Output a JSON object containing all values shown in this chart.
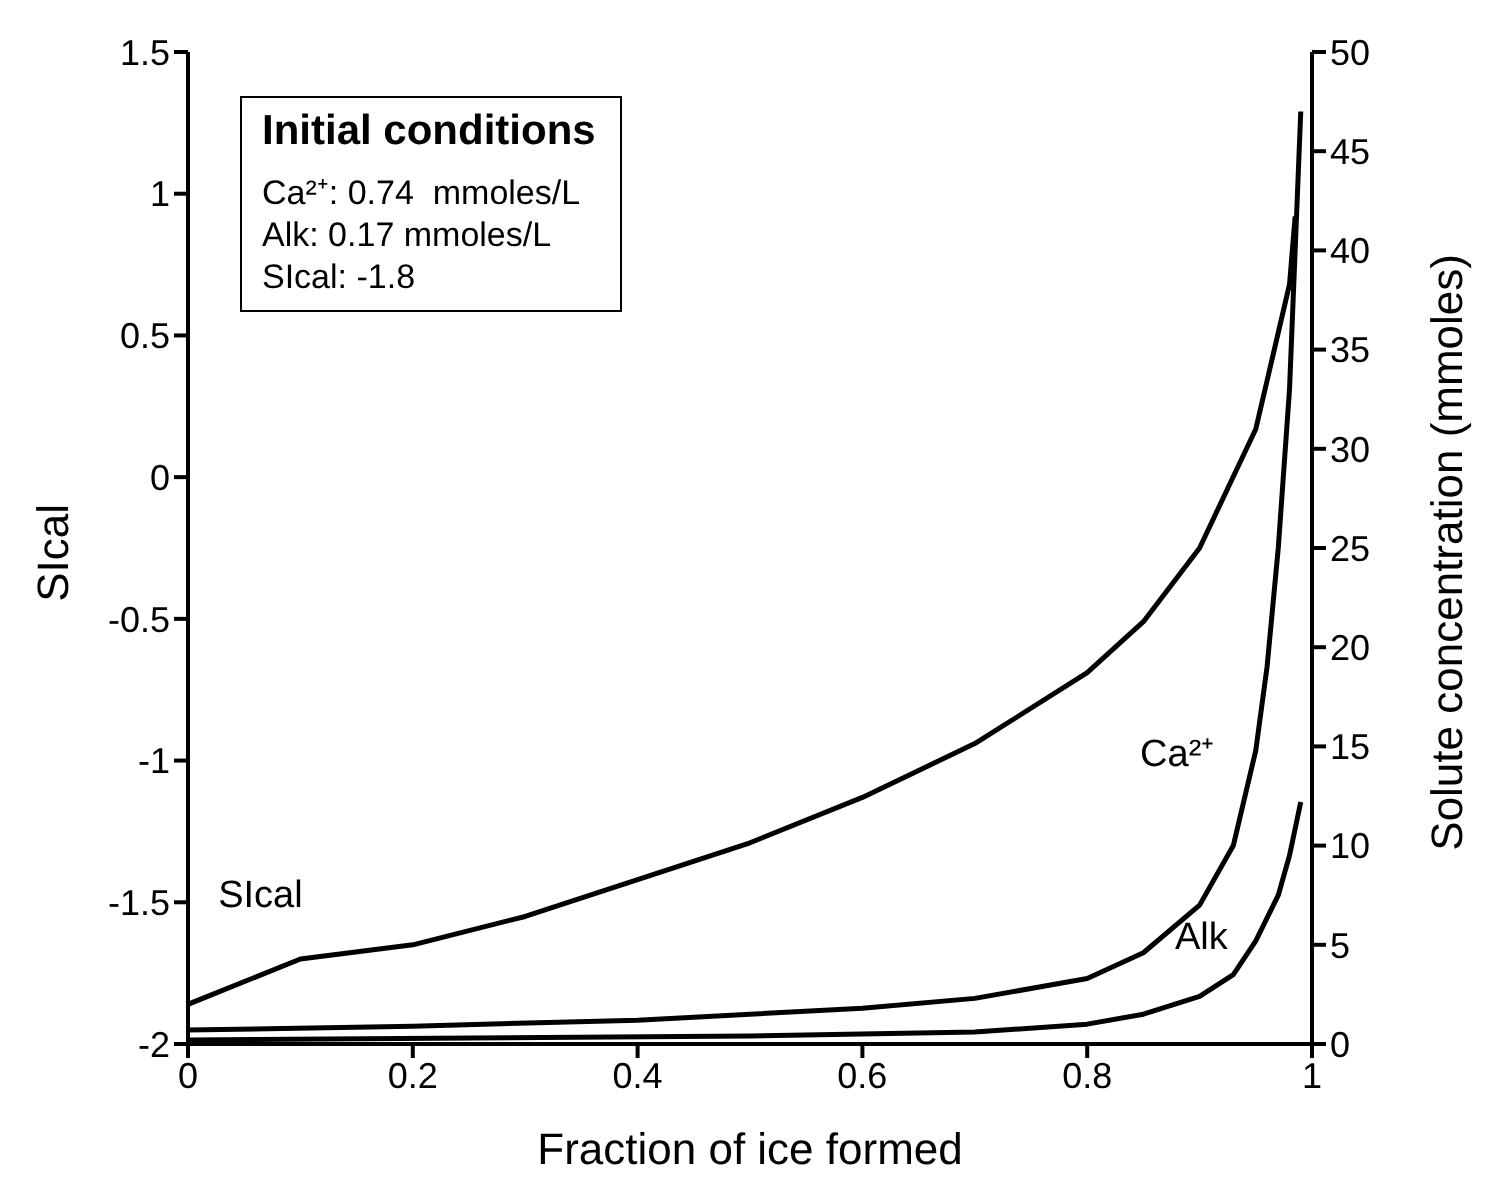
{
  "chart_data": {
    "type": "line",
    "xlabel": "Fraction of ice formed",
    "ylabel": "SIcal",
    "y2label": "Solute concentration (mmoles)",
    "xlim": [
      0,
      1
    ],
    "xticks": [
      0,
      0.2,
      0.4,
      0.6,
      0.8,
      1
    ],
    "ylim": [
      -2,
      1.5
    ],
    "yticks": [
      -2,
      -1.5,
      -1,
      -0.5,
      0,
      0.5,
      1,
      1.5
    ],
    "y2lim": [
      0,
      50
    ],
    "y2ticks": [
      0,
      5,
      10,
      15,
      20,
      25,
      30,
      35,
      40,
      45,
      50
    ],
    "marker": "none",
    "line_style": "solid",
    "series": [
      {
        "name": "SIcal",
        "color": "#000000",
        "x": [
          0,
          0.1,
          0.2,
          0.3,
          0.4,
          0.5,
          0.6,
          0.7,
          0.8,
          0.85,
          0.9,
          0.95,
          0.98,
          0.985
        ],
        "values": [
          -1.86,
          -1.7,
          -1.65,
          -1.55,
          -1.42,
          -1.29,
          -1.13,
          -0.94,
          -0.69,
          -0.51,
          -0.25,
          0.17,
          0.68,
          0.92
        ]
      },
      {
        "name": "Ca²⁺",
        "color": "#000000",
        "axis": "y2",
        "x": [
          0,
          0.2,
          0.4,
          0.6,
          0.7,
          0.8,
          0.85,
          0.9,
          0.93,
          0.95,
          0.96,
          0.97,
          0.98,
          0.99
        ],
        "values": [
          0.7,
          0.9,
          1.2,
          1.8,
          2.3,
          3.3,
          4.6,
          7,
          10,
          14.8,
          19,
          25,
          33,
          47
        ]
      },
      {
        "name": "Alk",
        "color": "#000000",
        "axis": "y2",
        "x": [
          0,
          0.5,
          0.7,
          0.8,
          0.85,
          0.9,
          0.93,
          0.95,
          0.97,
          0.98,
          0.99
        ],
        "values": [
          0.2,
          0.4,
          0.6,
          1,
          1.5,
          2.4,
          3.5,
          5.2,
          7.5,
          9.5,
          12.2
        ]
      }
    ],
    "annotations": [
      "Initial conditions",
      "Ca²⁺: 0.74  mmoles/L",
      "Alk: 0.17 mmoles/L",
      "SIcal: -1.8"
    ]
  }
}
